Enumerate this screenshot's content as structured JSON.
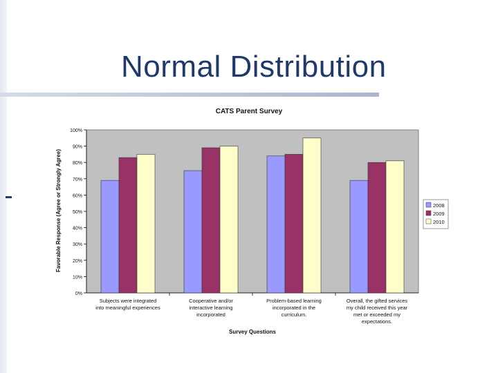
{
  "slide": {
    "title": "Normal Distribution"
  },
  "colors": {
    "title": "#1f3a6a",
    "plot_area": "#c0c0c0",
    "series_2008": "#9999ff",
    "series_2009": "#993366",
    "series_2010": "#ffffcc"
  },
  "chart_data": {
    "type": "bar",
    "title": "CATS Parent Survey",
    "xlabel": "Survey Questions",
    "ylabel": "Favorable Response (Agree or Strongly Agree)",
    "ylim": [
      0,
      100
    ],
    "y_tick_step": 10,
    "y_tick_suffix": "%",
    "grid": false,
    "legend_position": "right",
    "categories": [
      [
        "Subjects were integrated",
        "into meaningful experiences"
      ],
      [
        "Cooperative and/or",
        "interactive learning",
        "incorporated"
      ],
      [
        "Problem-based learning",
        "incorporated in the",
        "curriculum."
      ],
      [
        "Overall, the gifted services",
        "my child received this year",
        "met or exceeded my",
        "expectations."
      ]
    ],
    "series": [
      {
        "name": "2008",
        "color": "#9999ff",
        "values": [
          69,
          75,
          84,
          69
        ]
      },
      {
        "name": "2009",
        "color": "#993366",
        "values": [
          83,
          89,
          85,
          80
        ]
      },
      {
        "name": "2010",
        "color": "#ffffcc",
        "values": [
          85,
          90,
          95,
          81
        ]
      }
    ]
  }
}
